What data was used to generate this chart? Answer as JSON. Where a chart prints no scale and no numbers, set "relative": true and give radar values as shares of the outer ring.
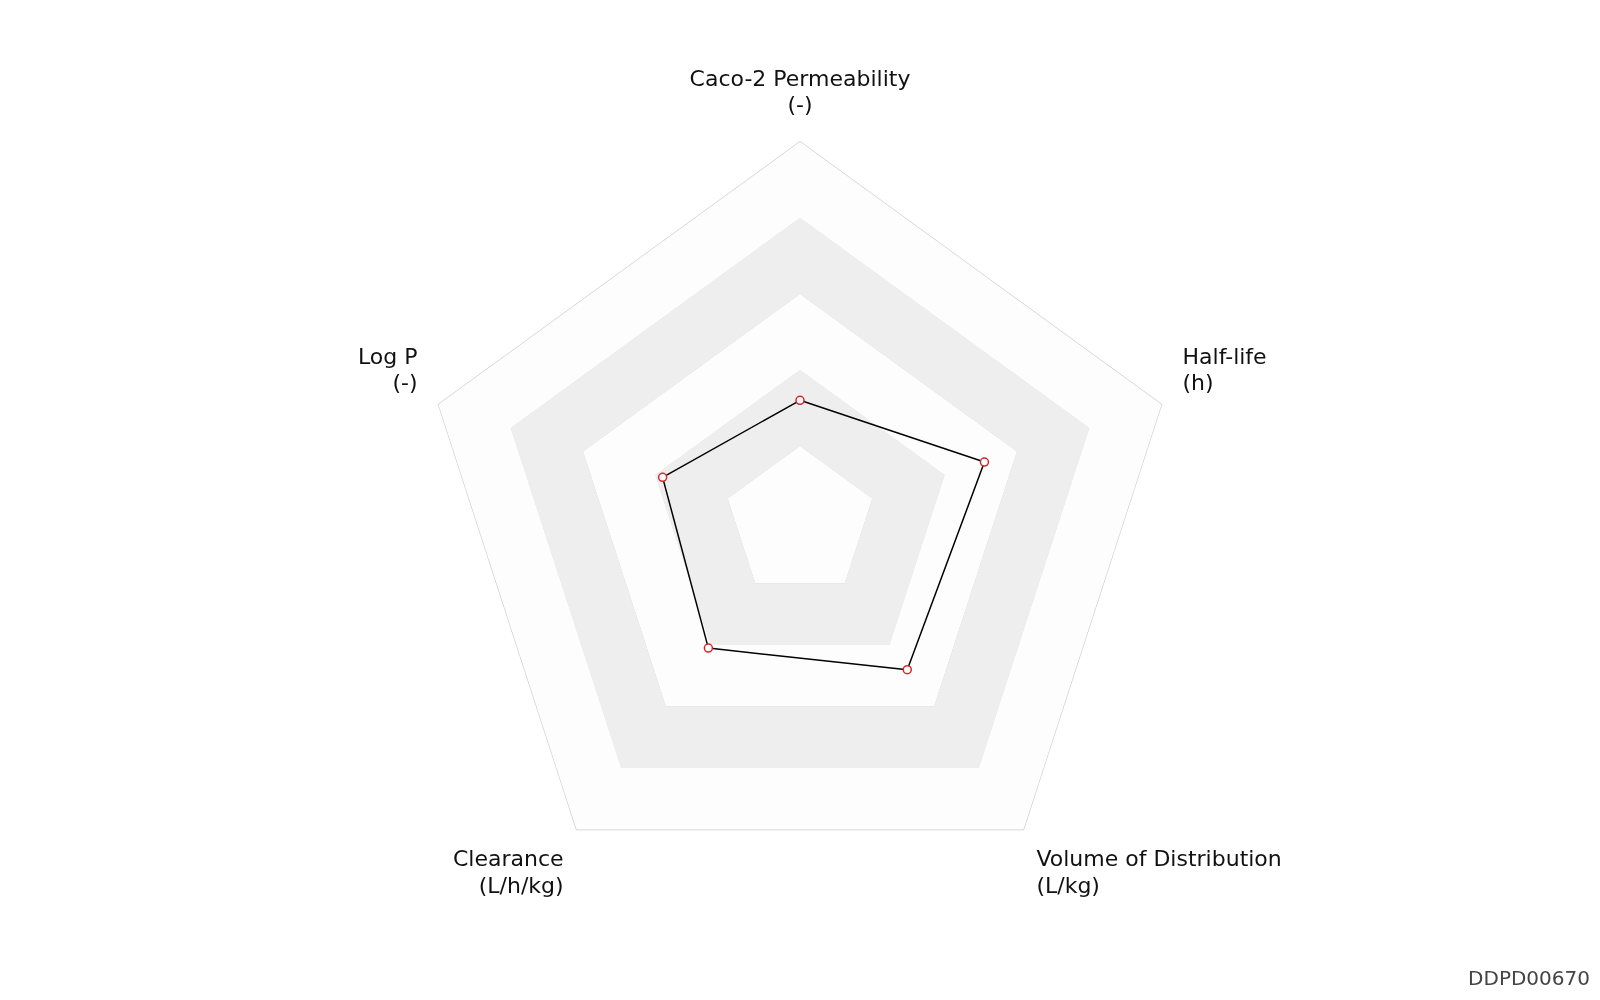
{
  "chart_data": {
    "type": "radar",
    "relative": true,
    "categories": [
      "Caco-2 Permeability\n(-)",
      "Half-life\n(h)",
      "Volume of Distribution\n(L/kg)",
      "Clearance\n(L/h/kg)",
      "Log P\n(-)"
    ],
    "series": [
      {
        "color": "#000000",
        "values": [
          0.32,
          0.51,
          0.48,
          0.41,
          0.38
        ]
      }
    ],
    "grid": true,
    "legend": false,
    "marker": "circle",
    "line_style": "solid",
    "annotations": [
      "DDPD00670"
    ]
  }
}
